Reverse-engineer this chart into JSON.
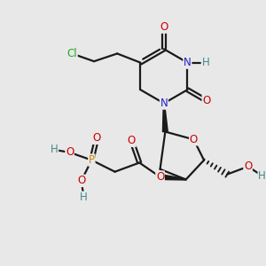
{
  "bg_color": "#e8e8e8",
  "bond_color": "#1a1a1a",
  "bond_width": 1.6,
  "atom_colors": {
    "C": "#1a1a1a",
    "N": "#2020cc",
    "O": "#cc0000",
    "P": "#cc8800",
    "Cl": "#22aa22",
    "H": "#448888"
  },
  "font_size": 8.5
}
